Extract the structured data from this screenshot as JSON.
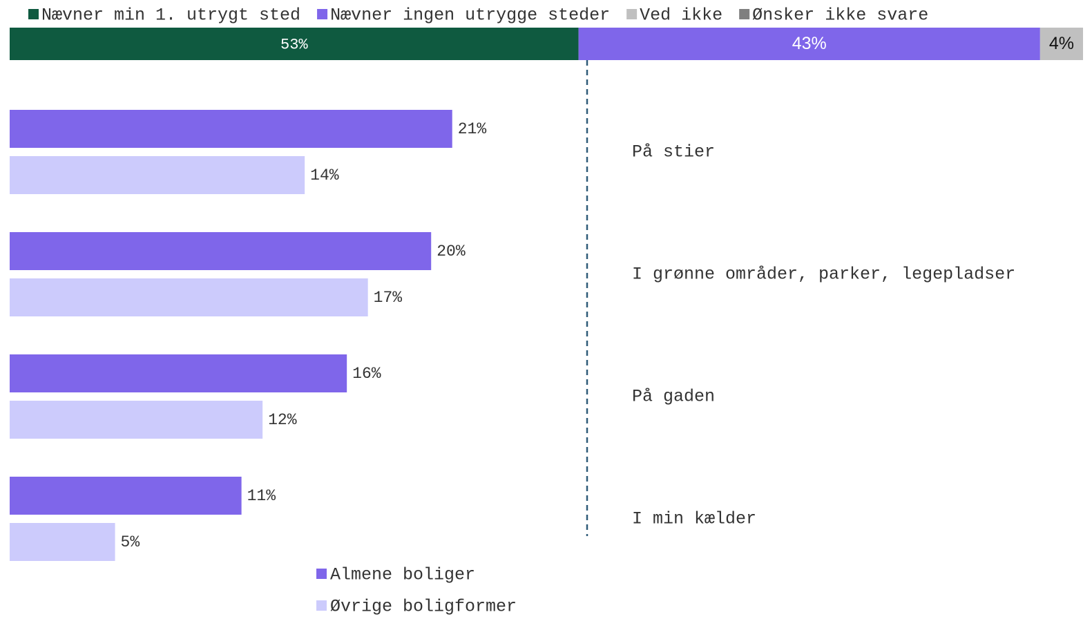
{
  "chart_data": [
    {
      "type": "stacked-bar",
      "series": [
        {
          "name": "Nævner min 1. utrygt sted",
          "color": "#0f5a40",
          "values": [
            53
          ],
          "value_labels": [
            "53%"
          ]
        },
        {
          "name": "Nævner ingen utrygge steder",
          "color": "#7f66ea",
          "values": [
            43
          ],
          "value_labels": [
            "43%"
          ]
        },
        {
          "name": "Ved ikke",
          "color": "#c0c0c0",
          "values": [
            4
          ],
          "value_labels": [
            "4%"
          ]
        },
        {
          "name": "Ønsker ikke svare",
          "color": "#7f7f7f",
          "values": [
            0
          ],
          "value_labels": [
            null
          ]
        }
      ]
    },
    {
      "type": "hbar-grouped",
      "categories": [
        "På stier",
        "I grønne områder, parker, legepladser",
        "På gaden",
        "I min kælder"
      ],
      "xlim": [
        0,
        27.4
      ],
      "series": [
        {
          "name": "Almene boliger",
          "color": "#7f66ea",
          "values": [
            21,
            20,
            16,
            11
          ],
          "value_labels": [
            "21%",
            "20%",
            "16%",
            "11%"
          ]
        },
        {
          "name": "Øvrige boligformer",
          "color": "#cccbfc",
          "values": [
            14,
            17,
            12,
            5
          ],
          "value_labels": [
            "14%",
            "17%",
            "12%",
            "5%"
          ]
        }
      ]
    }
  ]
}
